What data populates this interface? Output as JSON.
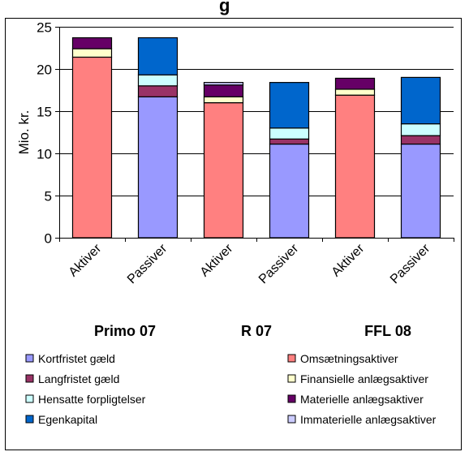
{
  "title_fragment": "g",
  "chart_data": {
    "type": "bar",
    "stacked": true,
    "title": "",
    "ylabel": "Mio. kr.",
    "xlabel": "",
    "ylim": [
      0,
      25
    ],
    "yticks": [
      0,
      5,
      10,
      15,
      20,
      25
    ],
    "categories": [
      "Aktiver",
      "Passiver",
      "Aktiver",
      "Passiver",
      "Aktiver",
      "Passiver"
    ],
    "groups": [
      "Primo 07",
      "R 07",
      "FFL 08"
    ],
    "grid": true,
    "legend_position": "bottom",
    "series": [
      {
        "name": "Kortfristet gæld",
        "color": "#9999ff",
        "values": [
          0,
          16.7,
          0,
          11.1,
          0,
          11.1
        ]
      },
      {
        "name": "Omsætningsaktiver",
        "color": "#ff8080",
        "values": [
          21.4,
          0,
          16.0,
          0,
          16.9,
          0
        ]
      },
      {
        "name": "Langfristet gæld",
        "color": "#993366",
        "values": [
          0,
          1.3,
          0,
          0.6,
          0,
          1.0
        ]
      },
      {
        "name": "Finansielle anlægsaktiver",
        "color": "#ffffcc",
        "values": [
          1.0,
          0,
          0.7,
          0,
          0.7,
          0
        ]
      },
      {
        "name": "Hensatte forpligtelser",
        "color": "#ccffff",
        "values": [
          0,
          1.3,
          0,
          1.3,
          0,
          1.4
        ]
      },
      {
        "name": "Materielle anlægsaktiver",
        "color": "#660066",
        "values": [
          1.3,
          0,
          1.4,
          0,
          1.3,
          0
        ]
      },
      {
        "name": "Egenkapital",
        "color": "#0066cc",
        "values": [
          0,
          4.4,
          0,
          5.4,
          0,
          5.5
        ]
      },
      {
        "name": "Immaterielle anlægsaktiver",
        "color": "#ccccff",
        "values": [
          0,
          0,
          0.3,
          0,
          0,
          0
        ]
      }
    ]
  }
}
